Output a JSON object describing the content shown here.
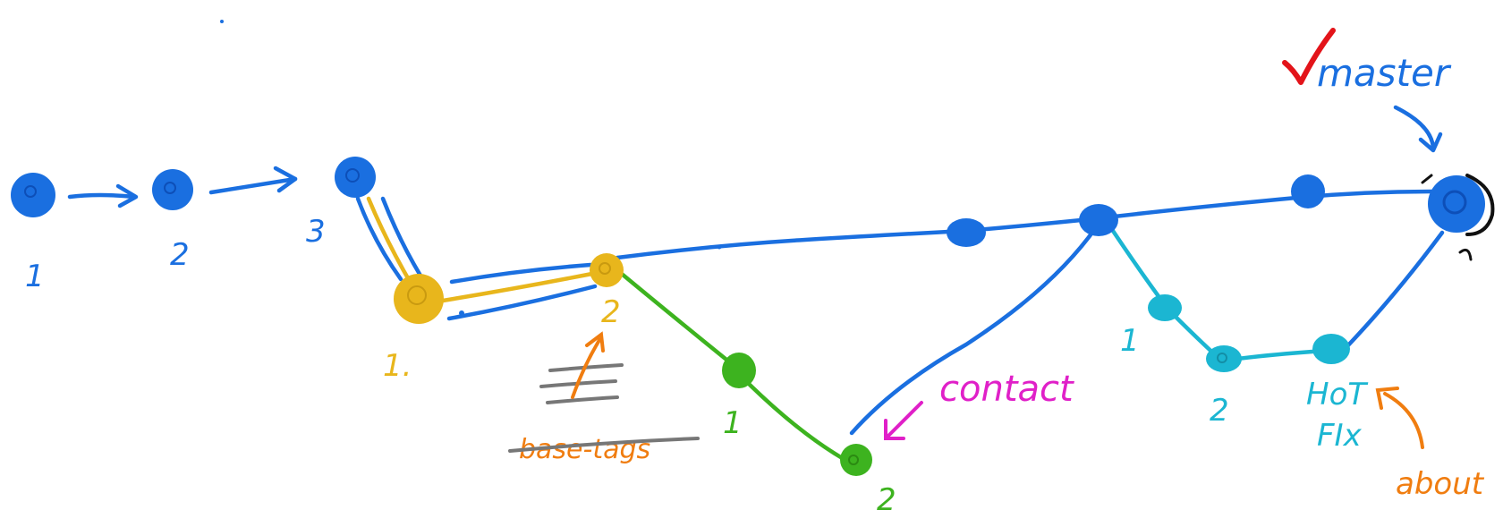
{
  "diagram": {
    "colors": {
      "master": "#1a6fe0",
      "feature_yellow": "#e8b61c",
      "feature_green": "#3db31f",
      "hotfix": "#1bb6d2",
      "contact": "#e020c8",
      "about": "#f07d10",
      "check": "#e3141a",
      "strike": "#777777",
      "head_ring": "#111111"
    },
    "labels": {
      "c1": "1",
      "c2": "2",
      "c3": "3",
      "y1": "1.",
      "y2": "2",
      "g1": "1",
      "g2": "2",
      "h1": "1",
      "h2": "2",
      "master": "master",
      "contact": "contact",
      "hotfix_line1": "HoT",
      "hotfix_line2": "FIx",
      "about": "about",
      "struck_out": "base-tags"
    },
    "icons": {
      "check": "checkmark-icon"
    }
  }
}
